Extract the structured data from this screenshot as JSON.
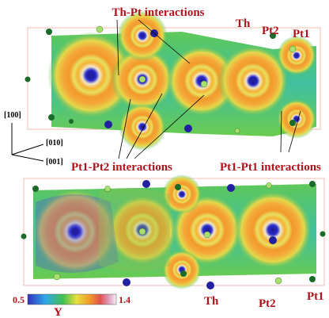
{
  "annotations": {
    "th_pt": "Th-Pt interactions",
    "th_top": "Th",
    "pt2_top": "Pt2",
    "pt1_top": "Pt1",
    "pt1_pt2": "Pt1-Pt2 interactions",
    "pt1_pt1": "Pt1-Pt1 interactions",
    "th_bottom": "Th",
    "pt2_bottom": "Pt2",
    "pt1_bottom": "Pt1"
  },
  "axes": {
    "a": "[100]",
    "b": "[010]",
    "c": "[001]"
  },
  "colorbar": {
    "min": 0.5,
    "max": 1.4,
    "symbol": "Υ"
  }
}
